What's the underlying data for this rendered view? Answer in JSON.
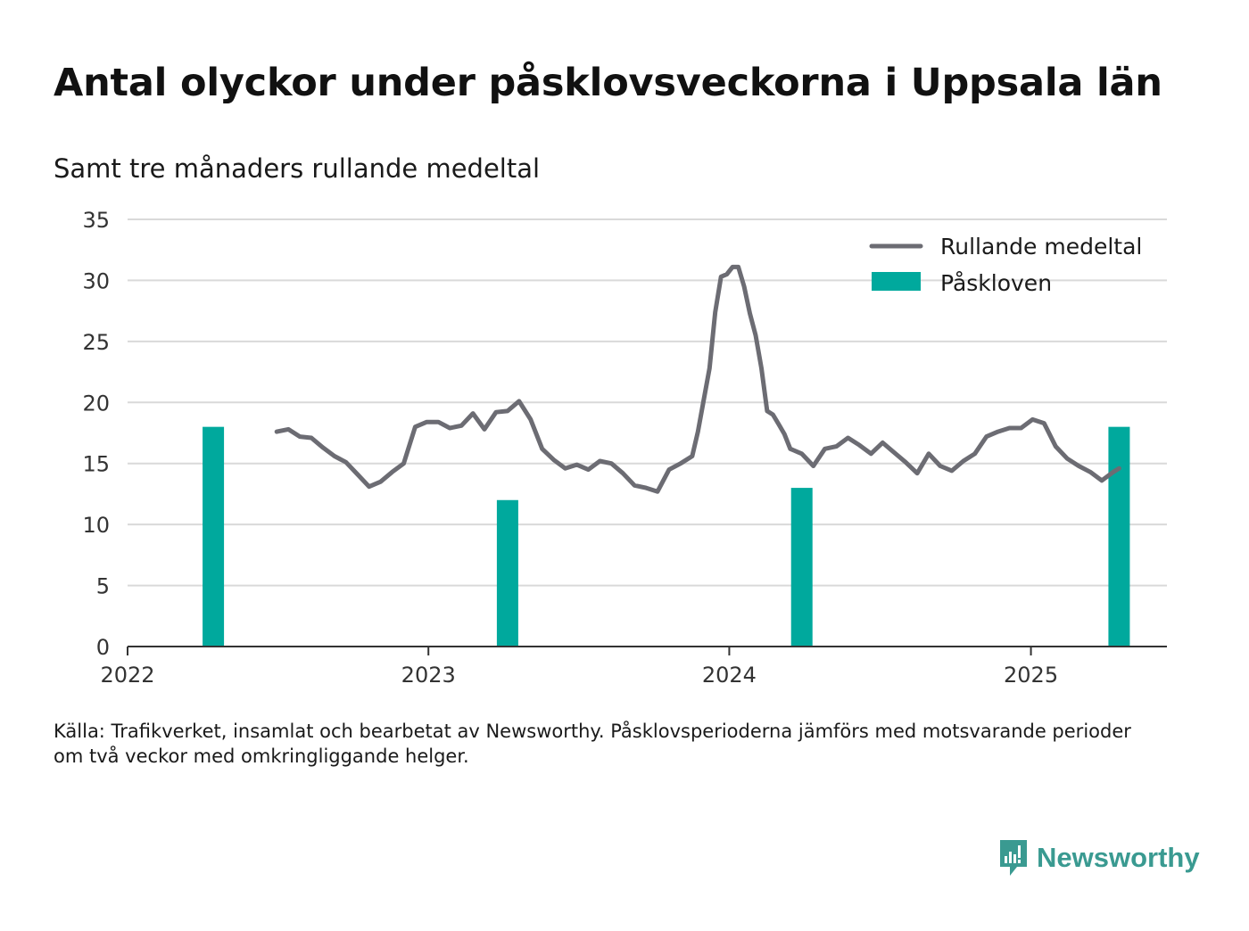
{
  "header": {
    "title": "Antal olyckor under påsklovsveckorna i Uppsala län",
    "subtitle": "Samt tre månaders rullande medeltal"
  },
  "footer": {
    "source_line1": "Källa: Trafikverket, insamlat och bearbetat av Newsworthy. Påsklovsperioderna jämförs med motsvarande perioder",
    "source_line2": "om två veckor med omkringliggande helger."
  },
  "brand": {
    "name": "Newsworthy",
    "color": "#3a9a91",
    "icon": "newsworthy-logo-icon"
  },
  "chart_data": {
    "type": "bar+line",
    "title": "Antal olyckor under påsklovsveckorna i Uppsala län",
    "subtitle": "Samt tre månaders rullande medeltal",
    "xlabel": "",
    "ylabel": "",
    "x_ticks": [
      "2022",
      "2023",
      "2024",
      "2025"
    ],
    "xlim": [
      "2022-01-01",
      "2025-06-15"
    ],
    "y_ticks": [
      0,
      5,
      10,
      15,
      20,
      25,
      30,
      35
    ],
    "ylim": [
      0,
      35
    ],
    "grid": true,
    "legend_position": "top-right",
    "legend": [
      "Rullande medeltal",
      "Påskloven"
    ],
    "colors": {
      "line": "#6c6c73",
      "bars": "#00a99d",
      "grid": "#d9d9d9",
      "axis": "#333333"
    },
    "bars": {
      "name": "Påskloven",
      "x": [
        "2022-04-15",
        "2023-04-07",
        "2024-03-29",
        "2025-04-18"
      ],
      "values": [
        18,
        12,
        13,
        18
      ]
    },
    "line": {
      "name": "Rullande medeltal",
      "x": [
        "2022-07-01",
        "2022-07-15",
        "2022-07-29",
        "2022-08-12",
        "2022-08-26",
        "2022-09-09",
        "2022-09-23",
        "2022-10-07",
        "2022-10-21",
        "2022-11-04",
        "2022-11-18",
        "2022-12-02",
        "2022-12-16",
        "2022-12-30",
        "2023-01-13",
        "2023-01-27",
        "2023-02-10",
        "2023-02-24",
        "2023-03-10",
        "2023-03-24",
        "2023-04-07",
        "2023-04-21",
        "2023-05-05",
        "2023-05-19",
        "2023-06-02",
        "2023-06-16",
        "2023-06-30",
        "2023-07-14",
        "2023-07-28",
        "2023-08-11",
        "2023-08-25",
        "2023-09-08",
        "2023-09-22",
        "2023-10-06",
        "2023-10-20",
        "2023-11-03",
        "2023-11-17",
        "2023-11-24",
        "2023-12-01",
        "2023-12-08",
        "2023-12-15",
        "2023-12-22",
        "2023-12-29",
        "2024-01-05",
        "2024-01-12",
        "2024-01-19",
        "2024-01-26",
        "2024-02-02",
        "2024-02-09",
        "2024-02-16",
        "2024-02-23",
        "2024-03-01",
        "2024-03-08",
        "2024-03-15",
        "2024-03-29",
        "2024-04-12",
        "2024-04-26",
        "2024-05-10",
        "2024-05-24",
        "2024-06-07",
        "2024-06-21",
        "2024-07-05",
        "2024-07-19",
        "2024-08-02",
        "2024-08-16",
        "2024-08-30",
        "2024-09-13",
        "2024-09-27",
        "2024-10-11",
        "2024-10-25",
        "2024-11-08",
        "2024-11-22",
        "2024-12-06",
        "2024-12-20",
        "2025-01-03",
        "2025-01-17",
        "2025-01-31",
        "2025-02-14",
        "2025-02-28",
        "2025-03-14",
        "2025-03-28",
        "2025-04-11",
        "2025-04-18"
      ],
      "values": [
        17.6,
        17.8,
        17.2,
        17.1,
        16.3,
        15.6,
        15.1,
        14.1,
        13.1,
        13.5,
        14.3,
        15.0,
        18.0,
        18.4,
        18.4,
        17.9,
        18.1,
        19.1,
        17.8,
        19.2,
        19.3,
        20.1,
        18.6,
        16.2,
        15.3,
        14.6,
        14.9,
        14.5,
        15.2,
        15.0,
        14.2,
        13.2,
        13.0,
        12.7,
        14.5,
        15.0,
        15.6,
        17.6,
        20.2,
        22.8,
        27.4,
        30.3,
        30.5,
        31.1,
        31.1,
        29.5,
        27.3,
        25.5,
        22.8,
        19.3,
        19.0,
        18.2,
        17.4,
        16.2,
        15.8,
        14.8,
        16.2,
        16.4,
        17.1,
        16.5,
        15.8,
        16.7,
        15.9,
        15.1,
        14.2,
        15.8,
        14.8,
        14.4,
        15.2,
        15.8,
        17.2,
        17.6,
        17.9,
        17.9,
        18.6,
        18.3,
        16.4,
        15.4,
        14.8,
        14.3,
        13.6,
        14.3,
        14.6
      ]
    }
  }
}
